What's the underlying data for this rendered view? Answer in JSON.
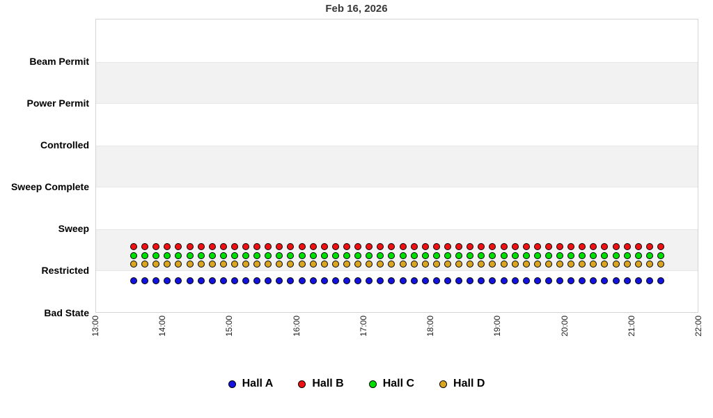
{
  "chart_data": {
    "type": "scatter",
    "title": "Feb 16, 2026",
    "ylabel": "",
    "xlabel": "",
    "y_categories_top_to_bottom": [
      "Beam Permit",
      "Power Permit",
      "Controlled",
      "Sweep Complete",
      "Sweep",
      "Restricted",
      "Bad State"
    ],
    "x_ticks": [
      "13:00",
      "14:00",
      "15:00",
      "16:00",
      "17:00",
      "18:00",
      "19:00",
      "20:00",
      "21:00",
      "22:00"
    ],
    "x_range": [
      "13:00",
      "22:00"
    ],
    "grid": "alternating-horizontal-bands",
    "legend_position": "bottom",
    "points": {
      "start_time": "13:35",
      "end_time": "21:25",
      "step_minutes": 10,
      "n_points_per_series": 48,
      "constant_value_all_series": "Restricted"
    },
    "stack_order_top_to_bottom": [
      "Hall B",
      "Hall C",
      "Hall D",
      "Hall A"
    ],
    "series": [
      {
        "name": "Hall A",
        "color": "#1313dd",
        "state": "Restricted",
        "row": 3
      },
      {
        "name": "Hall B",
        "color": "#ee1111",
        "state": "Restricted",
        "row": 0
      },
      {
        "name": "Hall C",
        "color": "#00dd00",
        "state": "Restricted",
        "row": 1
      },
      {
        "name": "Hall D",
        "color": "#daa520",
        "state": "Restricted",
        "row": 2
      }
    ],
    "legend": [
      {
        "label": "Hall A",
        "color": "#1313dd"
      },
      {
        "label": "Hall B",
        "color": "#ee1111"
      },
      {
        "label": "Hall C",
        "color": "#00dd00"
      },
      {
        "label": "Hall D",
        "color": "#daa520"
      }
    ]
  },
  "colors": {
    "background": "#ffffff",
    "band_gray": "#f2f2f2",
    "band_edge": "#e7e7e7",
    "plot_border": "#d4d4d4",
    "title_color": "#383838",
    "axis_label_color": "#000000",
    "tick_label_color": "#222222",
    "marker_outline": "#000000"
  }
}
